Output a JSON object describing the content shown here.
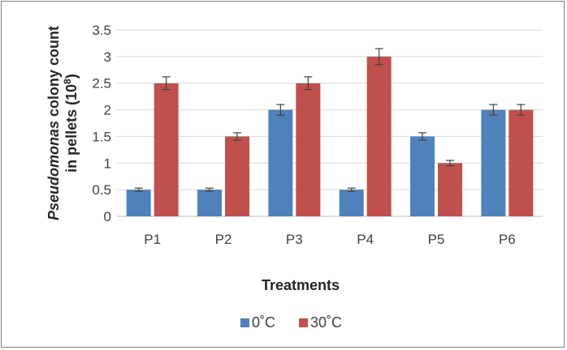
{
  "chart_data": {
    "type": "bar",
    "title": "",
    "xlabel": "Treatments",
    "ylabel_italic": "Pseudomonas",
    "ylabel_line1_rest": " colony count",
    "ylabel_line2_base": "in pellets (10",
    "ylabel_line2_sup": "8",
    "ylabel_line2_end": ")",
    "categories": [
      "P1",
      "P2",
      "P3",
      "P4",
      "P5",
      "P6"
    ],
    "series": [
      {
        "name": "0˚C",
        "color": "#4f81bd",
        "values": [
          0.5,
          0.5,
          2.0,
          0.5,
          1.5,
          2.0
        ],
        "errors": [
          0.03,
          0.03,
          0.1,
          0.03,
          0.07,
          0.1
        ]
      },
      {
        "name": "30˚C",
        "color": "#c0504d",
        "values": [
          2.5,
          1.5,
          2.5,
          3.0,
          1.0,
          2.0
        ],
        "errors": [
          0.12,
          0.07,
          0.12,
          0.15,
          0.05,
          0.1
        ]
      }
    ],
    "ylim": [
      0,
      3.5
    ],
    "yticks": [
      "0",
      "0.5",
      "1",
      "1.5",
      "2",
      "2.5",
      "3",
      "3.5"
    ],
    "grid": true,
    "legend_position": "bottom"
  }
}
